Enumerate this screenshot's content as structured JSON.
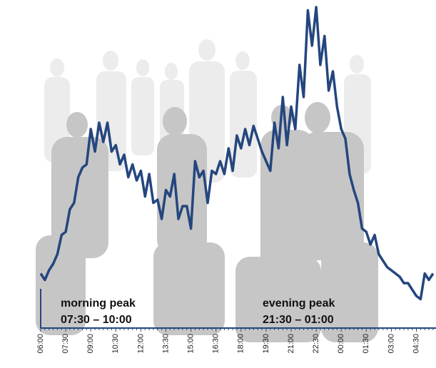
{
  "chart_data": {
    "type": "line",
    "categories": [
      "06:00",
      null,
      null,
      null,
      null,
      null,
      "07:30",
      null,
      null,
      null,
      null,
      null,
      "09:00",
      null,
      null,
      null,
      null,
      null,
      "10:30",
      null,
      null,
      null,
      null,
      null,
      "12:00",
      null,
      null,
      null,
      null,
      null,
      "13:30",
      null,
      null,
      null,
      null,
      null,
      "15:00",
      null,
      null,
      null,
      null,
      null,
      "16:30",
      null,
      null,
      null,
      null,
      null,
      "18:00",
      null,
      null,
      null,
      null,
      null,
      "19:30",
      null,
      null,
      null,
      null,
      null,
      "21:00",
      null,
      null,
      null,
      null,
      null,
      "22:30",
      null,
      null,
      null,
      null,
      null,
      "00:00",
      null,
      null,
      null,
      null,
      null,
      "01:30",
      null,
      null,
      null,
      null,
      null,
      "03:00",
      null,
      null,
      null,
      null,
      null,
      "04:30",
      null,
      null,
      null,
      null
    ],
    "values": [
      17,
      15,
      18,
      20,
      23,
      29,
      30,
      37,
      39,
      47,
      50,
      51,
      62,
      55,
      64,
      58,
      64,
      55,
      57,
      51,
      54,
      47,
      51,
      46,
      49,
      41,
      48,
      39,
      40,
      34,
      43,
      41,
      48,
      34,
      38,
      38,
      31,
      52,
      47,
      49,
      39,
      49,
      48,
      52,
      48,
      56,
      49,
      60,
      56,
      62,
      57,
      63,
      59,
      55,
      52,
      49,
      64,
      56,
      72,
      57,
      69,
      62,
      82,
      72,
      99,
      88,
      100,
      82,
      91,
      74,
      80,
      69,
      62,
      59,
      48,
      43,
      39,
      31,
      30,
      26,
      29,
      23,
      21,
      19,
      18,
      17,
      16,
      14,
      14,
      12,
      10,
      9,
      17,
      15,
      17
    ],
    "color": "#24467e",
    "ylim": [
      0,
      100
    ],
    "annotations": [
      {
        "title": "morning peak",
        "text": "07:30 – 10:00"
      },
      {
        "title": "evening peak",
        "text": "21:30 – 01:00"
      }
    ]
  }
}
